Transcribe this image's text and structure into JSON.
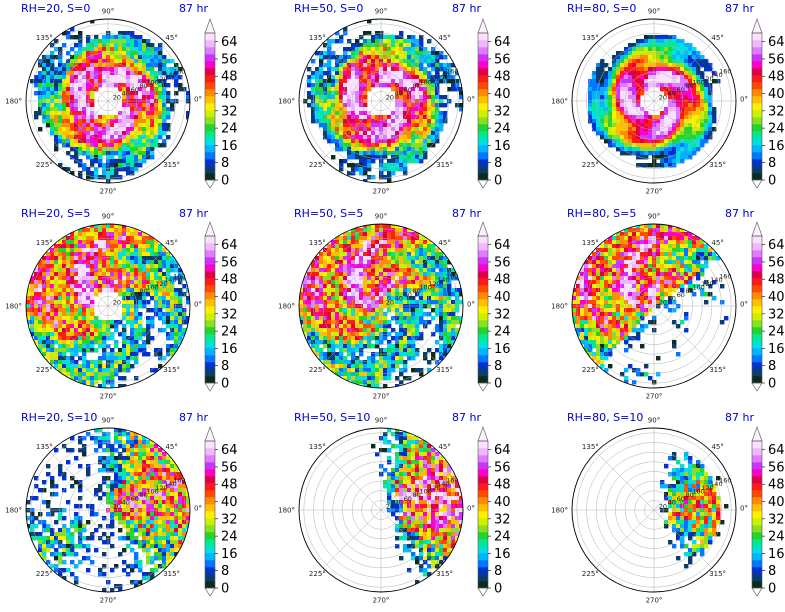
{
  "chart_data": [
    {
      "type": "heatmap",
      "title_left": "RH=20, S=0",
      "title_right": "87 hr",
      "rh": 20,
      "s": 0
    },
    {
      "type": "heatmap",
      "title_left": "RH=50, S=0",
      "title_right": "87 hr",
      "rh": 50,
      "s": 0
    },
    {
      "type": "heatmap",
      "title_left": "RH=80, S=0",
      "title_right": "87 hr",
      "rh": 80,
      "s": 0
    },
    {
      "type": "heatmap",
      "title_left": "RH=20, S=5",
      "title_right": "87 hr",
      "rh": 20,
      "s": 5
    },
    {
      "type": "heatmap",
      "title_left": "RH=50, S=5",
      "title_right": "87 hr",
      "rh": 50,
      "s": 5
    },
    {
      "type": "heatmap",
      "title_left": "RH=80, S=5",
      "title_right": "87 hr",
      "rh": 80,
      "s": 5
    },
    {
      "type": "heatmap",
      "title_left": "RH=20, S=10",
      "title_right": "87 hr",
      "rh": 20,
      "s": 10
    },
    {
      "type": "heatmap",
      "title_left": "RH=50, S=10",
      "title_right": "87 hr",
      "rh": 50,
      "s": 10
    },
    {
      "type": "heatmap",
      "title_left": "RH=80, S=10",
      "title_right": "87 hr",
      "rh": 80,
      "s": 10
    }
  ],
  "polar_axes": {
    "angle_ticks": [
      "90°",
      "45°",
      "0°",
      "315°",
      "270°",
      "225°",
      "180°",
      "135°"
    ],
    "radial_ticks": [
      "20",
      "40",
      "60",
      "80",
      "100",
      "120",
      "140",
      "160"
    ]
  },
  "colorbar": {
    "ticks": [
      "0",
      "8",
      "16",
      "24",
      "32",
      "40",
      "48",
      "56",
      "64"
    ],
    "range": [
      0,
      68
    ],
    "colors": [
      "#0c2c1c",
      "#0a3d6e",
      "#0033cc",
      "#0077ff",
      "#00b4ff",
      "#00e0e0",
      "#00e890",
      "#22d42c",
      "#88e020",
      "#ccf000",
      "#ffee00",
      "#ffc000",
      "#ff8c00",
      "#ff4a00",
      "#ff1a1a",
      "#e0004a",
      "#ff00cc",
      "#cc33ff",
      "#e07cff",
      "#f2b8ff",
      "#fbe0ff"
    ]
  }
}
